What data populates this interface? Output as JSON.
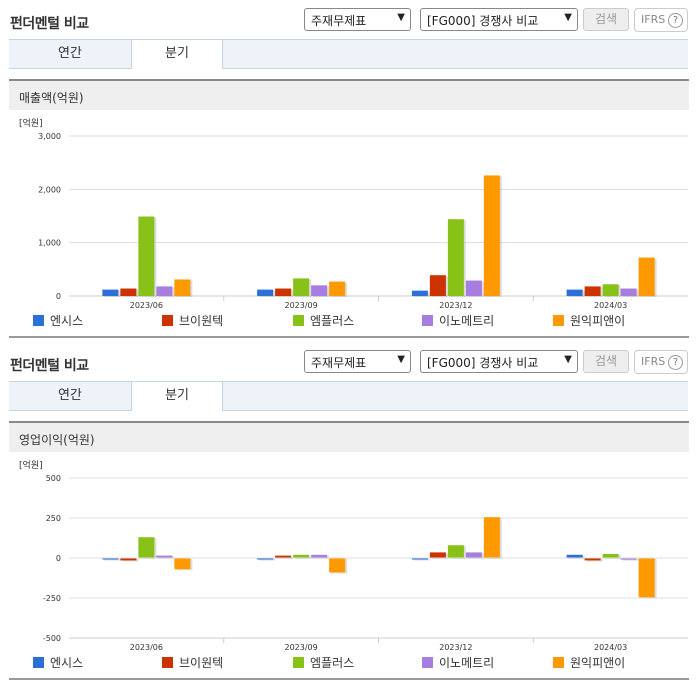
{
  "sections": [
    {
      "title": "펀더멘털 비교",
      "select1": "주재무제표",
      "select2": "[FG000] 경쟁사 비교",
      "search_label": "검색",
      "ifrs_label": "IFRS",
      "help_glyph": "?",
      "tabs": [
        "연간",
        "분기"
      ],
      "active_tab": "분기",
      "chart_title": "매출액(억원)"
    },
    {
      "title": "펀더멘털 비교",
      "select1": "주재무제표",
      "select2": "[FG000] 경쟁사 비교",
      "search_label": "검색",
      "ifrs_label": "IFRS",
      "help_glyph": "?",
      "tabs": [
        "연간",
        "분기"
      ],
      "active_tab": "분기",
      "chart_title": "영업이익(억원)"
    }
  ],
  "colors": {
    "엔시스": "#2c6fd6",
    "브이원텍": "#cc3300",
    "엠플러스": "#88c218",
    "이노메트리": "#a77de0",
    "원익피앤이": "#ff9900"
  },
  "chart_data": [
    {
      "type": "bar",
      "title": "매출액(억원)",
      "unit_label": "[억원]",
      "categories": [
        "2023/06",
        "2023/09",
        "2023/12",
        "2024/03"
      ],
      "ylim": [
        0,
        3000
      ],
      "yticks": [
        0,
        1000,
        2000,
        3000
      ],
      "ytick_labels": [
        "0",
        "1,000",
        "2,000",
        "3,000"
      ],
      "series": [
        {
          "name": "엔시스",
          "values": [
            120,
            120,
            100,
            120
          ]
        },
        {
          "name": "브이원텍",
          "values": [
            140,
            140,
            390,
            180
          ]
        },
        {
          "name": "엠플러스",
          "values": [
            1490,
            330,
            1440,
            220
          ]
        },
        {
          "name": "이노메트리",
          "values": [
            180,
            200,
            290,
            140
          ]
        },
        {
          "name": "원익피앤이",
          "values": [
            310,
            270,
            2260,
            720
          ]
        }
      ],
      "legend_position": "bottom"
    },
    {
      "type": "bar",
      "title": "영업이익(억원)",
      "unit_label": "[억원]",
      "categories": [
        "2023/06",
        "2023/09",
        "2023/12",
        "2024/03"
      ],
      "ylim": [
        -500,
        500
      ],
      "yticks": [
        -500,
        -250,
        0,
        250,
        500
      ],
      "ytick_labels": [
        "-500",
        "-250",
        "0",
        "250",
        "500"
      ],
      "series": [
        {
          "name": "엔시스",
          "values": [
            0,
            0,
            0,
            20
          ]
        },
        {
          "name": "브이원텍",
          "values": [
            -15,
            15,
            35,
            -15
          ]
        },
        {
          "name": "엠플러스",
          "values": [
            130,
            20,
            80,
            25
          ]
        },
        {
          "name": "이노메트리",
          "values": [
            15,
            20,
            35,
            -10
          ]
        },
        {
          "name": "원익피앤이",
          "values": [
            -70,
            -90,
            255,
            -245
          ]
        }
      ],
      "legend_position": "bottom"
    }
  ]
}
